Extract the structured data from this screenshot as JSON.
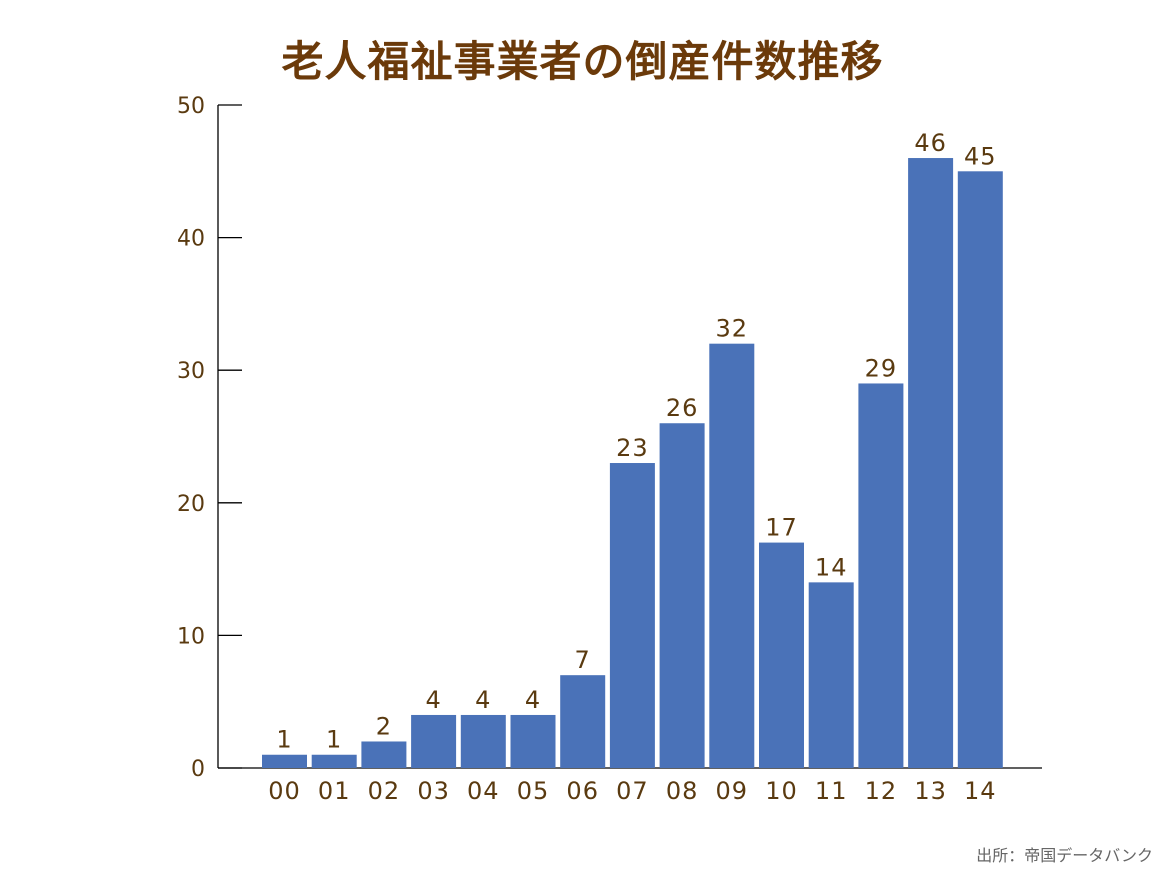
{
  "chart_data": {
    "type": "bar",
    "title": "老人福祉事業者の倒産件数推移",
    "categories": [
      "00",
      "01",
      "02",
      "03",
      "04",
      "05",
      "06",
      "07",
      "08",
      "09",
      "10",
      "11",
      "12",
      "13",
      "14"
    ],
    "values": [
      1,
      1,
      2,
      4,
      4,
      4,
      7,
      23,
      26,
      32,
      17,
      14,
      29,
      46,
      45
    ],
    "xlabel": "",
    "ylabel": "",
    "ylim": [
      0,
      50
    ],
    "yticks": [
      0,
      10,
      20,
      30,
      40,
      50
    ],
    "grid": false,
    "bar_color": "#4A72B8",
    "text_color": "#5A3A10",
    "title_color": "#6B3A0A",
    "source": "出所：帝国データバンク"
  }
}
